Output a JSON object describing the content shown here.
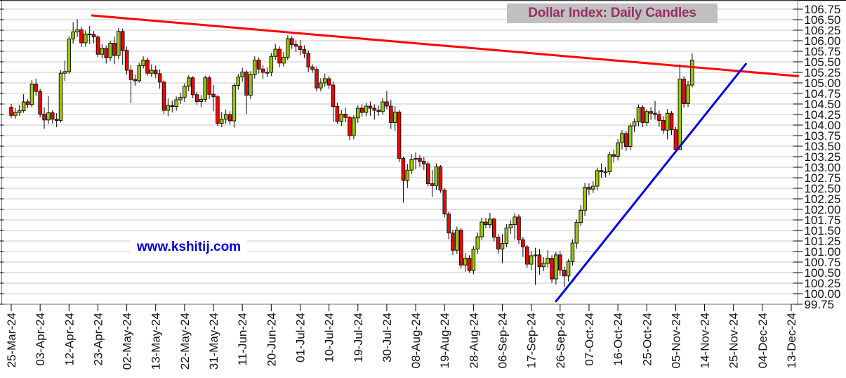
{
  "title": "Dollar Index: Daily Candles",
  "watermark": "www.kshitij.com",
  "colors": {
    "up_candle": "#9CC800",
    "down_candle": "#FF0000",
    "candle_border": "#000000",
    "wick": "#000000",
    "grid": "#C9C9C9",
    "axis": "#000000",
    "frame": "#6E6E6E",
    "tick_label": "#111111",
    "title_text": "#9C2D62",
    "title_bg": "#C0C0C0",
    "watermark_text": "#0000DD",
    "resistance_line": "#FF0000",
    "support_line": "#0000F0"
  },
  "chart_data": {
    "type": "candlestick",
    "title": "Dollar Index: Daily Candles",
    "xlabel": "",
    "ylabel": "",
    "ylim": [
      99.75,
      106.75
    ],
    "ytick_step": 0.25,
    "grid": true,
    "legend_position": "none",
    "first_date": "25-Mar-24",
    "last_candle_date": "11-Nov-24",
    "xticks_every_n_trading_days": 7,
    "ytick_labels": [
      "106.75",
      "106.50",
      "106.25",
      "106.00",
      "105.75",
      "105.50",
      "105.25",
      "105.00",
      "104.75",
      "104.50",
      "104.25",
      "104.00",
      "103.75",
      "103.50",
      "103.25",
      "103.00",
      "102.75",
      "102.50",
      "102.25",
      "102.00",
      "101.75",
      "101.50",
      "101.25",
      "101.00",
      "100.75",
      "100.50",
      "100.25",
      "100.00",
      "99.75"
    ],
    "xtick_labels": [
      "25-Mar-24",
      "03-Apr-24",
      "12-Apr-24",
      "23-Apr-24",
      "02-May-24",
      "13-May-24",
      "22-May-24",
      "31-May-24",
      "11-Jun-24",
      "20-Jun-24",
      "01-Jul-24",
      "10-Jul-24",
      "19-Jul-24",
      "30-Jul-24",
      "08-Aug-24",
      "19-Aug-24",
      "28-Aug-24",
      "06-Sep-24",
      "17-Sep-24",
      "26-Sep-24",
      "07-Oct-24",
      "16-Oct-24",
      "25-Oct-24",
      "05-Nov-24",
      "14-Nov-24",
      "25-Nov-24",
      "04-Dec-24",
      "13-Dec-24"
    ],
    "candles_ohlc": [
      [
        104.42,
        104.5,
        104.16,
        104.23
      ],
      [
        104.23,
        104.41,
        104.15,
        104.3
      ],
      [
        104.3,
        104.47,
        104.22,
        104.34
      ],
      [
        104.34,
        104.73,
        104.29,
        104.55
      ],
      [
        104.55,
        104.61,
        104.4,
        104.49
      ],
      [
        104.49,
        105.07,
        104.42,
        104.97
      ],
      [
        104.97,
        105.1,
        104.69,
        104.8
      ],
      [
        104.8,
        104.86,
        104.18,
        104.26
      ],
      [
        104.26,
        104.42,
        103.91,
        104.12
      ],
      [
        104.12,
        104.69,
        104.02,
        104.29
      ],
      [
        104.29,
        104.35,
        104.03,
        104.14
      ],
      [
        104.14,
        104.28,
        103.95,
        104.11
      ],
      [
        104.11,
        105.3,
        104.06,
        105.23
      ],
      [
        105.23,
        105.53,
        105.05,
        105.27
      ],
      [
        105.27,
        106.11,
        105.21,
        106.04
      ],
      [
        106.04,
        106.44,
        105.93,
        106.21
      ],
      [
        106.21,
        106.51,
        106.09,
        106.26
      ],
      [
        106.26,
        106.33,
        105.85,
        105.95
      ],
      [
        105.95,
        106.24,
        105.86,
        106.16
      ],
      [
        106.16,
        106.35,
        105.92,
        106.15
      ],
      [
        106.15,
        106.23,
        105.94,
        106.09
      ],
      [
        106.09,
        106.13,
        105.61,
        105.68
      ],
      [
        105.68,
        105.92,
        105.58,
        105.82
      ],
      [
        105.82,
        105.89,
        105.46,
        105.6
      ],
      [
        105.6,
        106.0,
        105.52,
        105.94
      ],
      [
        105.94,
        106.1,
        105.45,
        105.65
      ],
      [
        105.65,
        106.3,
        105.57,
        106.22
      ],
      [
        106.22,
        106.29,
        105.43,
        105.77
      ],
      [
        105.77,
        105.86,
        105.19,
        105.3
      ],
      [
        105.3,
        105.42,
        104.52,
        105.08
      ],
      [
        105.08,
        105.2,
        104.93,
        105.05
      ],
      [
        105.05,
        105.48,
        105.01,
        105.41
      ],
      [
        105.41,
        105.63,
        105.34,
        105.54
      ],
      [
        105.54,
        105.6,
        105.17,
        105.23
      ],
      [
        105.23,
        105.44,
        105.14,
        105.3
      ],
      [
        105.3,
        105.41,
        105.11,
        105.22
      ],
      [
        105.22,
        105.32,
        104.86,
        105.02
      ],
      [
        105.02,
        105.06,
        104.26,
        104.35
      ],
      [
        104.35,
        104.63,
        104.21,
        104.46
      ],
      [
        104.46,
        104.58,
        104.3,
        104.44
      ],
      [
        104.44,
        104.68,
        104.34,
        104.6
      ],
      [
        104.6,
        104.76,
        104.5,
        104.66
      ],
      [
        104.66,
        104.99,
        104.55,
        104.92
      ],
      [
        104.92,
        105.18,
        104.8,
        105.12
      ],
      [
        105.12,
        105.16,
        104.64,
        104.72
      ],
      [
        104.72,
        104.79,
        104.48,
        104.56
      ],
      [
        104.56,
        104.71,
        104.42,
        104.61
      ],
      [
        104.61,
        105.17,
        104.55,
        105.12
      ],
      [
        105.12,
        105.17,
        104.62,
        104.73
      ],
      [
        104.73,
        104.95,
        104.33,
        104.67
      ],
      [
        104.67,
        104.71,
        103.98,
        104.04
      ],
      [
        104.04,
        104.31,
        103.95,
        104.14
      ],
      [
        104.14,
        104.37,
        104.03,
        104.25
      ],
      [
        104.25,
        104.33,
        104.01,
        104.1
      ],
      [
        104.1,
        104.99,
        103.94,
        104.94
      ],
      [
        104.94,
        105.21,
        104.84,
        105.14
      ],
      [
        105.14,
        105.36,
        105.03,
        105.26
      ],
      [
        105.26,
        105.31,
        104.26,
        104.71
      ],
      [
        104.71,
        105.28,
        104.62,
        105.2
      ],
      [
        105.2,
        105.63,
        105.1,
        105.54
      ],
      [
        105.54,
        105.61,
        105.22,
        105.33
      ],
      [
        105.33,
        105.42,
        105.1,
        105.25
      ],
      [
        105.25,
        105.37,
        105.14,
        105.25
      ],
      [
        105.25,
        105.71,
        105.16,
        105.63
      ],
      [
        105.63,
        105.92,
        105.55,
        105.8
      ],
      [
        105.8,
        105.87,
        105.37,
        105.47
      ],
      [
        105.47,
        105.73,
        105.39,
        105.61
      ],
      [
        105.61,
        106.13,
        105.54,
        106.05
      ],
      [
        106.05,
        106.11,
        105.81,
        105.91
      ],
      [
        105.91,
        106.01,
        105.73,
        105.87
      ],
      [
        105.87,
        106.02,
        105.66,
        105.79
      ],
      [
        105.79,
        105.89,
        105.59,
        105.7
      ],
      [
        105.7,
        105.77,
        105.26,
        105.38
      ],
      [
        105.38,
        105.44,
        105.24,
        105.32
      ],
      [
        105.32,
        105.39,
        104.8,
        104.88
      ],
      [
        104.88,
        105.11,
        104.8,
        105.0
      ],
      [
        105.0,
        105.22,
        104.91,
        105.1
      ],
      [
        105.1,
        105.17,
        104.86,
        104.95
      ],
      [
        104.95,
        105.03,
        104.08,
        104.44
      ],
      [
        104.44,
        104.53,
        104.03,
        104.09
      ],
      [
        104.09,
        104.36,
        103.98,
        104.26
      ],
      [
        104.26,
        104.41,
        104.07,
        104.18
      ],
      [
        104.18,
        104.22,
        103.64,
        103.75
      ],
      [
        103.75,
        104.23,
        103.66,
        104.17
      ],
      [
        104.17,
        104.47,
        104.05,
        104.4
      ],
      [
        104.4,
        104.49,
        104.2,
        104.3
      ],
      [
        104.3,
        104.53,
        104.21,
        104.45
      ],
      [
        104.45,
        104.56,
        104.22,
        104.4
      ],
      [
        104.4,
        104.49,
        104.13,
        104.35
      ],
      [
        104.35,
        104.46,
        104.22,
        104.32
      ],
      [
        104.32,
        104.64,
        104.25,
        104.55
      ],
      [
        104.55,
        104.81,
        104.37,
        104.45
      ],
      [
        104.45,
        104.6,
        103.91,
        104.06
      ],
      [
        104.06,
        104.45,
        103.86,
        104.31
      ],
      [
        104.31,
        104.36,
        103.12,
        103.21
      ],
      [
        103.21,
        103.25,
        102.16,
        102.69
      ],
      [
        102.69,
        103.08,
        102.51,
        102.93
      ],
      [
        102.93,
        103.31,
        102.83,
        103.19
      ],
      [
        103.19,
        103.35,
        102.95,
        103.21
      ],
      [
        103.21,
        103.29,
        103.01,
        103.14
      ],
      [
        103.14,
        103.24,
        102.93,
        103.08
      ],
      [
        103.08,
        103.13,
        102.54,
        102.61
      ],
      [
        102.61,
        102.93,
        102.3,
        102.56
      ],
      [
        102.56,
        103.09,
        102.46,
        103.01
      ],
      [
        103.01,
        103.05,
        102.39,
        102.46
      ],
      [
        102.46,
        102.5,
        101.81,
        101.89
      ],
      [
        101.89,
        101.95,
        101.29,
        101.44
      ],
      [
        101.44,
        101.52,
        100.92,
        101.03
      ],
      [
        101.03,
        101.59,
        100.95,
        101.51
      ],
      [
        101.51,
        101.56,
        100.6,
        100.68
      ],
      [
        100.68,
        100.96,
        100.52,
        100.84
      ],
      [
        100.84,
        100.91,
        100.5,
        100.55
      ],
      [
        100.55,
        101.13,
        100.46,
        101.06
      ],
      [
        101.06,
        101.45,
        100.95,
        101.35
      ],
      [
        101.35,
        101.8,
        101.27,
        101.7
      ],
      [
        101.7,
        101.8,
        101.55,
        101.64
      ],
      [
        101.64,
        101.92,
        101.55,
        101.77
      ],
      [
        101.77,
        101.81,
        101.24,
        101.34
      ],
      [
        101.34,
        101.41,
        100.95,
        101.06
      ],
      [
        101.06,
        101.41,
        100.72,
        101.19
      ],
      [
        101.19,
        101.65,
        101.1,
        101.56
      ],
      [
        101.56,
        101.74,
        101.42,
        101.64
      ],
      [
        101.64,
        101.91,
        101.29,
        101.82
      ],
      [
        101.82,
        101.88,
        101.18,
        101.28
      ],
      [
        101.28,
        101.35,
        100.87,
        101.11
      ],
      [
        101.11,
        101.15,
        100.61,
        100.7
      ],
      [
        100.7,
        101.01,
        100.56,
        100.9
      ],
      [
        100.9,
        101.09,
        100.21,
        100.92
      ],
      [
        100.92,
        101.06,
        100.45,
        100.64
      ],
      [
        100.64,
        100.87,
        100.54,
        100.72
      ],
      [
        100.72,
        101.03,
        100.62,
        100.84
      ],
      [
        100.84,
        100.91,
        100.25,
        100.35
      ],
      [
        100.35,
        100.99,
        100.22,
        100.92
      ],
      [
        100.92,
        101.0,
        100.42,
        100.56
      ],
      [
        100.56,
        100.64,
        100.16,
        100.42
      ],
      [
        100.42,
        100.82,
        100.29,
        100.76
      ],
      [
        100.76,
        101.29,
        100.67,
        101.2
      ],
      [
        101.2,
        101.76,
        101.07,
        101.69
      ],
      [
        101.69,
        102.1,
        101.61,
        101.98
      ],
      [
        101.98,
        102.63,
        101.85,
        102.52
      ],
      [
        102.52,
        102.62,
        102.34,
        102.48
      ],
      [
        102.48,
        102.67,
        102.39,
        102.55
      ],
      [
        102.55,
        102.99,
        102.45,
        102.92
      ],
      [
        102.92,
        103.09,
        102.75,
        102.89
      ],
      [
        102.89,
        103.0,
        102.76,
        102.89
      ],
      [
        102.89,
        103.37,
        102.81,
        103.3
      ],
      [
        103.3,
        103.42,
        103.11,
        103.26
      ],
      [
        103.26,
        103.67,
        103.16,
        103.58
      ],
      [
        103.58,
        103.88,
        103.42,
        103.8
      ],
      [
        103.8,
        103.86,
        103.39,
        103.49
      ],
      [
        103.49,
        104.04,
        103.41,
        103.98
      ],
      [
        103.98,
        104.16,
        103.83,
        104.08
      ],
      [
        104.08,
        104.49,
        103.97,
        104.42
      ],
      [
        104.42,
        104.47,
        103.95,
        104.06
      ],
      [
        104.06,
        104.38,
        103.97,
        104.32
      ],
      [
        104.32,
        104.43,
        104.12,
        104.28
      ],
      [
        104.28,
        104.57,
        104.13,
        104.25
      ],
      [
        104.25,
        104.34,
        103.96,
        104.11
      ],
      [
        104.11,
        104.21,
        103.79,
        103.88
      ],
      [
        103.88,
        104.38,
        103.66,
        104.28
      ],
      [
        104.28,
        104.33,
        103.77,
        103.89
      ],
      [
        103.89,
        103.95,
        103.36,
        103.42
      ],
      [
        103.42,
        105.44,
        103.4,
        105.09
      ],
      [
        105.09,
        105.16,
        104.41,
        104.51
      ],
      [
        104.51,
        105.05,
        104.43,
        104.95
      ],
      [
        104.95,
        105.7,
        104.89,
        105.54
      ]
    ],
    "trendlines": [
      {
        "name": "resistance",
        "color": "#FF0000",
        "from_day": 19.6,
        "from_price": 106.6,
        "to_day": 190.6,
        "to_price": 105.16,
        "width": 3
      },
      {
        "name": "support",
        "color": "#0000F0",
        "from_day": 132.0,
        "from_price": 99.82,
        "to_day": 178.0,
        "to_price": 105.45,
        "width": 3
      }
    ]
  }
}
